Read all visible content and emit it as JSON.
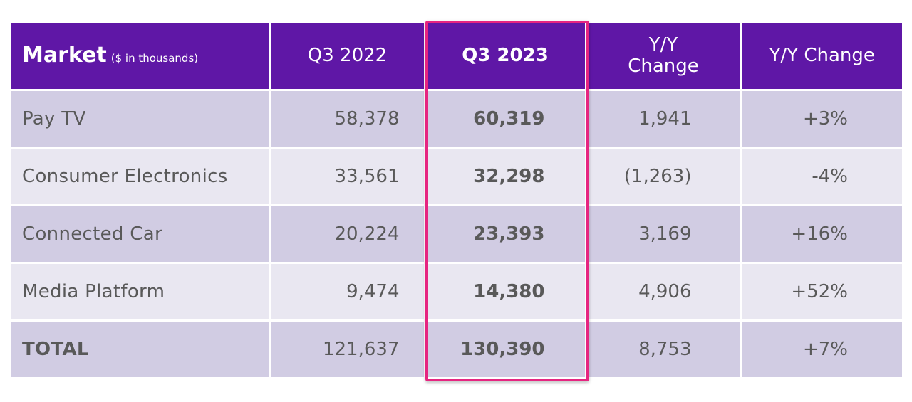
{
  "table": {
    "header": {
      "market_title": "Market",
      "market_subtitle": "($ in thousands)",
      "q3_2022": "Q3 2022",
      "q3_2023": "Q3 2023",
      "yy_change": "Y/Y Change",
      "yy_change_pct": "Y/Y Change"
    },
    "rows": [
      {
        "market": "Pay TV",
        "q3_2022": "58,378",
        "q3_2023": "60,319",
        "yy_change": "1,941",
        "yy_pct": "+3%"
      },
      {
        "market": "Consumer Electronics",
        "q3_2022": "33,561",
        "q3_2023": "32,298",
        "yy_change": "(1,263)",
        "yy_pct": "-4%"
      },
      {
        "market": "Connected Car",
        "q3_2022": "20,224",
        "q3_2023": "23,393",
        "yy_change": "3,169",
        "yy_pct": "+16%"
      },
      {
        "market": "Media Platform",
        "q3_2022": "9,474",
        "q3_2023": "14,380",
        "yy_change": "4,906",
        "yy_pct": "+52%"
      },
      {
        "market": "TOTAL",
        "q3_2022": "121,637",
        "q3_2023": "130,390",
        "yy_change": "8,753",
        "yy_pct": "+7%"
      }
    ]
  },
  "colors": {
    "header_bg": "#5f17a6",
    "row_dark": "#d1cce3",
    "row_light": "#e9e7f1",
    "highlight_border": "#e62581",
    "text": "#595959"
  }
}
